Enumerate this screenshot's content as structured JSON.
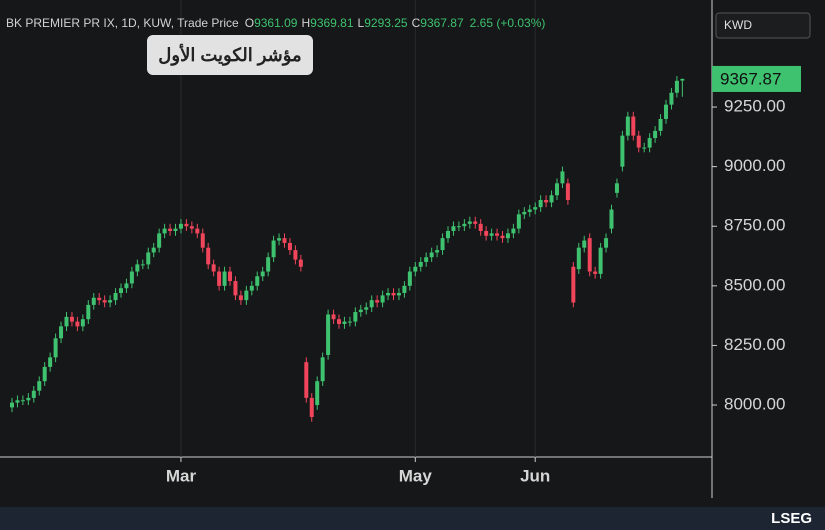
{
  "chart_data": {
    "type": "candlestick",
    "title": "BK PREMIER PR IX, 1D, KUW, Trade Price",
    "ohlc_labels": [
      "O",
      "H",
      "L",
      "C"
    ],
    "change": "2.65 (+0.03%)",
    "annotation": "مؤشر الكويت الأول",
    "currency": "KWD",
    "logo": "LSEG",
    "up_color": "#3ec26f",
    "down_color": "#f0455b",
    "ylim": [
      7782,
      9699
    ],
    "yticks": [
      {
        "value": 8000,
        "label": "8000.00"
      },
      {
        "value": 8250,
        "label": "8250.00"
      },
      {
        "value": 8500,
        "label": "8500.00"
      },
      {
        "value": 8750,
        "label": "8750.00"
      },
      {
        "value": 9000,
        "label": "9000.00"
      },
      {
        "value": 9250,
        "label": "9250.00"
      }
    ],
    "categories": [
      null,
      null,
      null,
      null,
      null,
      null,
      null,
      null,
      null,
      null,
      null,
      null,
      null,
      null,
      null,
      null,
      null,
      null,
      null,
      null,
      null,
      null,
      null,
      null,
      null,
      null,
      null,
      null,
      null,
      null,
      null,
      "Mar",
      null,
      null,
      null,
      null,
      null,
      null,
      null,
      null,
      null,
      null,
      null,
      null,
      null,
      null,
      null,
      null,
      null,
      null,
      null,
      null,
      null,
      null,
      null,
      null,
      null,
      null,
      null,
      null,
      null,
      null,
      null,
      null,
      null,
      null,
      null,
      null,
      null,
      null,
      null,
      null,
      null,
      null,
      "May",
      null,
      null,
      null,
      null,
      null,
      null,
      null,
      null,
      null,
      null,
      null,
      null,
      null,
      null,
      null,
      null,
      null,
      null,
      null,
      null,
      null,
      "Jun",
      null,
      null,
      null,
      null,
      null,
      null,
      null,
      null,
      null,
      null,
      null,
      null,
      null,
      null,
      null,
      null,
      null,
      null,
      null,
      null,
      null,
      null,
      null,
      null,
      null,
      null,
      null
    ],
    "open": [
      7990,
      8010,
      8020,
      8020,
      8030,
      8060,
      8100,
      8160,
      8200,
      8280,
      8330,
      8370,
      8350,
      8330,
      8360,
      8420,
      8450,
      8440,
      8430,
      8440,
      8470,
      8490,
      8510,
      8560,
      8590,
      8590,
      8640,
      8660,
      8720,
      8740,
      8730,
      8740,
      8760,
      8750,
      8740,
      8720,
      8660,
      8590,
      8560,
      8500,
      8560,
      8520,
      8460,
      8440,
      8480,
      8500,
      8540,
      8560,
      8620,
      8690,
      8700,
      8680,
      8650,
      8610,
      8180,
      8030,
      8000,
      8100,
      8210,
      8380,
      8360,
      8340,
      8350,
      8350,
      8390,
      8400,
      8410,
      8440,
      8430,
      8460,
      8470,
      8460,
      8470,
      8500,
      8560,
      8580,
      8600,
      8620,
      8640,
      8650,
      8700,
      8730,
      8750,
      8750,
      8760,
      8770,
      8760,
      8730,
      8710,
      8720,
      8710,
      8700,
      8720,
      8740,
      8800,
      8810,
      8820,
      8830,
      8860,
      8850,
      8880,
      8930,
      8930,
      8580,
      8570,
      8660,
      8700,
      8560,
      8550,
      8660,
      8740,
      8890,
      9000,
      9130,
      9210,
      9130,
      9080,
      9080,
      9120,
      9150,
      9200,
      9260,
      9310,
      9361.09
    ],
    "high": [
      8030,
      8040,
      8040,
      8050,
      8080,
      8120,
      8180,
      8220,
      8300,
      8350,
      8390,
      8390,
      8370,
      8380,
      8440,
      8470,
      8470,
      8460,
      8460,
      8490,
      8510,
      8530,
      8580,
      8610,
      8610,
      8660,
      8680,
      8740,
      8760,
      8760,
      8760,
      8780,
      8780,
      8770,
      8760,
      8740,
      8680,
      8610,
      8580,
      8580,
      8580,
      8540,
      8480,
      8500,
      8520,
      8560,
      8580,
      8640,
      8710,
      8720,
      8720,
      8700,
      8670,
      8630,
      8200,
      8050,
      8120,
      8220,
      8400,
      8400,
      8380,
      8370,
      8370,
      8410,
      8420,
      8430,
      8460,
      8460,
      8480,
      8490,
      8490,
      8490,
      8520,
      8580,
      8600,
      8620,
      8640,
      8660,
      8670,
      8720,
      8750,
      8770,
      8770,
      8780,
      8790,
      8790,
      8780,
      8750,
      8740,
      8740,
      8730,
      8740,
      8760,
      8820,
      8830,
      8840,
      8850,
      8880,
      8880,
      8900,
      8950,
      9000,
      8950,
      8600,
      8680,
      8710,
      8720,
      8580,
      8680,
      8720,
      8840,
      8950,
      9150,
      9230,
      9230,
      9150,
      9100,
      9140,
      9170,
      9220,
      9280,
      9330,
      9380,
      9369.81
    ],
    "low": [
      7970,
      7990,
      8000,
      8000,
      8010,
      8040,
      8080,
      8140,
      8180,
      8260,
      8310,
      8330,
      8310,
      8310,
      8340,
      8400,
      8420,
      8410,
      8410,
      8420,
      8450,
      8470,
      8490,
      8540,
      8570,
      8570,
      8620,
      8640,
      8700,
      8710,
      8710,
      8720,
      8730,
      8720,
      8700,
      8640,
      8570,
      8540,
      8480,
      8480,
      8500,
      8440,
      8420,
      8420,
      8460,
      8480,
      8520,
      8540,
      8600,
      8670,
      8660,
      8630,
      8590,
      8560,
      8010,
      7930,
      7980,
      8080,
      8190,
      8340,
      8320,
      8320,
      8330,
      8330,
      8370,
      8380,
      8390,
      8410,
      8410,
      8440,
      8440,
      8440,
      8450,
      8480,
      8540,
      8560,
      8580,
      8600,
      8620,
      8630,
      8680,
      8710,
      8730,
      8730,
      8740,
      8740,
      8710,
      8690,
      8690,
      8690,
      8680,
      8680,
      8700,
      8720,
      8780,
      8790,
      8800,
      8810,
      8830,
      8830,
      8860,
      8910,
      8840,
      8410,
      8550,
      8640,
      8540,
      8530,
      8530,
      8640,
      8720,
      8870,
      8980,
      9110,
      9110,
      9060,
      9060,
      9060,
      9100,
      9130,
      9180,
      9240,
      9290,
      9293.25
    ],
    "close": [
      8010,
      8020,
      8020,
      8030,
      8060,
      8100,
      8160,
      8200,
      8280,
      8330,
      8370,
      8350,
      8330,
      8360,
      8420,
      8450,
      8440,
      8430,
      8440,
      8470,
      8490,
      8510,
      8560,
      8590,
      8590,
      8640,
      8660,
      8720,
      8740,
      8730,
      8740,
      8760,
      8750,
      8740,
      8720,
      8660,
      8590,
      8560,
      8500,
      8560,
      8520,
      8460,
      8440,
      8480,
      8500,
      8540,
      8560,
      8620,
      8690,
      8700,
      8680,
      8650,
      8610,
      8580,
      8030,
      7950,
      8100,
      8200,
      8380,
      8360,
      8340,
      8350,
      8350,
      8390,
      8400,
      8410,
      8440,
      8430,
      8460,
      8470,
      8460,
      8470,
      8500,
      8560,
      8580,
      8600,
      8620,
      8640,
      8650,
      8700,
      8730,
      8750,
      8750,
      8760,
      8770,
      8760,
      8730,
      8710,
      8720,
      8710,
      8700,
      8720,
      8740,
      8800,
      8810,
      8820,
      8830,
      8860,
      8850,
      8880,
      8930,
      8980,
      8860,
      8430,
      8660,
      8690,
      8560,
      8550,
      8660,
      8700,
      8820,
      8930,
      9130,
      9210,
      9130,
      9080,
      9080,
      9120,
      9150,
      9200,
      9260,
      9310,
      9360,
      9367.87
    ]
  }
}
